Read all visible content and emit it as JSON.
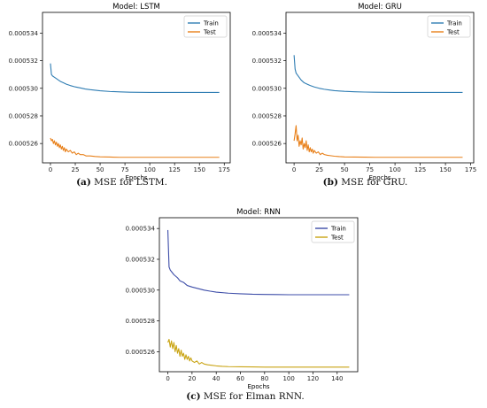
{
  "chart_data": [
    {
      "type": "line",
      "title": "Model: LSTM",
      "xlabel": "Epochs",
      "ylabel": "",
      "caption_letter": "(a)",
      "caption_text": " MSE for LSTM.",
      "xlim": [
        -8,
        181
      ],
      "ylim": [
        0.0005246,
        0.0005355
      ],
      "xticks": [
        0,
        25,
        50,
        75,
        100,
        125,
        150,
        175
      ],
      "yticks": [
        0.000526,
        0.000528,
        0.00053,
        0.000532,
        0.000534
      ],
      "ytick_labels": [
        "0.000526",
        "0.000528",
        "0.000530",
        "0.000532",
        "0.000534"
      ],
      "legend": {
        "position": "top-right",
        "entries": [
          "Train",
          "Test"
        ]
      },
      "series": [
        {
          "name": "Train",
          "color": "#2f7db3",
          "x": [
            0,
            1,
            2,
            4,
            6,
            8,
            10,
            13,
            16,
            20,
            25,
            30,
            35,
            40,
            50,
            60,
            70,
            80,
            90,
            100,
            110,
            120,
            130,
            140,
            150,
            160,
            170
          ],
          "y": [
            0.0005318,
            0.000531,
            0.0005309,
            0.0005308,
            0.0005307,
            0.0005306,
            0.0005305,
            0.0005304,
            0.0005303,
            0.0005302,
            0.0005301,
            0.00053003,
            0.00052995,
            0.0005299,
            0.00052982,
            0.00052977,
            0.00052974,
            0.00052972,
            0.00052971,
            0.0005297,
            0.0005297,
            0.0005297,
            0.0005297,
            0.0005297,
            0.0005297,
            0.0005297,
            0.0005297
          ]
        },
        {
          "name": "Test",
          "color": "#e8801a",
          "x": [
            0,
            1,
            2,
            3,
            4,
            5,
            6,
            7,
            8,
            9,
            10,
            11,
            12,
            13,
            14,
            15,
            16,
            18,
            20,
            22,
            24,
            26,
            28,
            30,
            33,
            36,
            40,
            45,
            50,
            60,
            70,
            80,
            100,
            120,
            140,
            160,
            170
          ],
          "y": [
            0.0005264,
            0.0005262,
            0.0005263,
            0.000526,
            0.0005262,
            0.0005259,
            0.0005261,
            0.0005258,
            0.000526,
            0.0005257,
            0.0005259,
            0.0005256,
            0.0005258,
            0.0005255,
            0.0005257,
            0.0005254,
            0.0005256,
            0.0005254,
            0.0005255,
            0.0005253,
            0.0005254,
            0.0005252,
            0.0005253,
            0.0005252,
            0.0005252,
            0.0005251,
            0.0005251,
            0.00052506,
            0.00052504,
            0.00052502,
            0.000525,
            0.000525,
            0.000525,
            0.000525,
            0.000525,
            0.000525,
            0.000525
          ]
        }
      ]
    },
    {
      "type": "line",
      "title": "Model: GRU",
      "xlabel": "Epochs",
      "ylabel": "",
      "caption_letter": "(b)",
      "caption_text": " MSE for GRU.",
      "xlim": [
        -8,
        178
      ],
      "ylim": [
        0.0005246,
        0.0005355
      ],
      "xticks": [
        0,
        25,
        50,
        75,
        100,
        125,
        150,
        175
      ],
      "yticks": [
        0.000526,
        0.000528,
        0.00053,
        0.000532,
        0.000534
      ],
      "ytick_labels": [
        "0.000526",
        "0.000528",
        "0.000530",
        "0.000532",
        "0.000534"
      ],
      "legend": {
        "position": "top-right",
        "entries": [
          "Train",
          "Test"
        ]
      },
      "series": [
        {
          "name": "Train",
          "color": "#2f7db3",
          "x": [
            0,
            1,
            2,
            3,
            5,
            7,
            10,
            13,
            16,
            20,
            25,
            30,
            35,
            40,
            50,
            60,
            70,
            80,
            90,
            100,
            120,
            140,
            160,
            167
          ],
          "y": [
            0.0005324,
            0.0005314,
            0.0005311,
            0.000531,
            0.0005308,
            0.0005306,
            0.0005304,
            0.0005303,
            0.0005302,
            0.0005301,
            0.00053,
            0.00052993,
            0.00052988,
            0.00052983,
            0.00052978,
            0.00052975,
            0.00052973,
            0.00052972,
            0.00052971,
            0.0005297,
            0.0005297,
            0.0005297,
            0.0005297,
            0.0005297
          ]
        },
        {
          "name": "Test",
          "color": "#e8801a",
          "x": [
            0,
            1,
            2,
            3,
            4,
            5,
            6,
            7,
            8,
            9,
            10,
            11,
            12,
            13,
            14,
            15,
            16,
            17,
            18,
            19,
            20,
            22,
            24,
            26,
            28,
            30,
            33,
            36,
            40,
            45,
            50,
            60,
            70,
            80,
            100,
            120,
            140,
            160,
            167
          ],
          "y": [
            0.0005262,
            0.0005267,
            0.0005273,
            0.0005262,
            0.0005266,
            0.0005258,
            0.0005262,
            0.0005259,
            0.0005264,
            0.0005256,
            0.000526,
            0.0005257,
            0.0005262,
            0.0005255,
            0.0005259,
            0.0005254,
            0.0005257,
            0.0005254,
            0.0005256,
            0.0005253,
            0.0005255,
            0.0005253,
            0.0005254,
            0.0005252,
            0.0005253,
            0.0005252,
            0.00052515,
            0.00052512,
            0.00052508,
            0.00052505,
            0.00052503,
            0.00052502,
            0.00052501,
            0.000525,
            0.000525,
            0.000525,
            0.000525,
            0.000525,
            0.000525
          ]
        }
      ]
    },
    {
      "type": "line",
      "title": "Model: RNN",
      "xlabel": "Epochs",
      "ylabel": "",
      "caption_letter": "(c)",
      "caption_text": " MSE for Elman RNN.",
      "xlim": [
        -7,
        157
      ],
      "ylim": [
        0.0005247,
        0.0005347
      ],
      "xticks": [
        0,
        20,
        40,
        60,
        80,
        100,
        120,
        140
      ],
      "yticks": [
        0.000526,
        0.000528,
        0.00053,
        0.000532,
        0.000534
      ],
      "ytick_labels": [
        "0.000526",
        "0.000528",
        "0.000530",
        "0.000532",
        "0.000534"
      ],
      "legend": {
        "position": "top-right",
        "entries": [
          "Train",
          "Test"
        ]
      },
      "series": [
        {
          "name": "Train",
          "color": "#3d4da8",
          "x": [
            0,
            1,
            2,
            3,
            5,
            8,
            10,
            13,
            16,
            20,
            25,
            30,
            35,
            40,
            50,
            60,
            70,
            80,
            90,
            100,
            110,
            120,
            130,
            140,
            150
          ],
          "y": [
            0.0005339,
            0.0005315,
            0.0005313,
            0.0005312,
            0.000531,
            0.0005308,
            0.0005306,
            0.0005305,
            0.0005303,
            0.0005302,
            0.0005301,
            0.00053,
            0.00052993,
            0.00052987,
            0.0005298,
            0.00052976,
            0.00052973,
            0.00052972,
            0.00052971,
            0.0005297,
            0.0005297,
            0.0005297,
            0.0005297,
            0.0005297,
            0.0005297
          ]
        },
        {
          "name": "Test",
          "color": "#c9a414",
          "x": [
            0,
            1,
            2,
            3,
            4,
            5,
            6,
            7,
            8,
            9,
            10,
            11,
            12,
            13,
            14,
            15,
            16,
            17,
            18,
            19,
            20,
            22,
            24,
            26,
            28,
            30,
            33,
            36,
            40,
            45,
            50,
            60,
            70,
            80,
            100,
            120,
            140,
            150
          ],
          "y": [
            0.0005266,
            0.0005268,
            0.0005263,
            0.0005267,
            0.0005262,
            0.0005266,
            0.000526,
            0.0005264,
            0.0005259,
            0.0005262,
            0.0005257,
            0.0005261,
            0.0005257,
            0.0005259,
            0.0005255,
            0.0005258,
            0.0005255,
            0.0005257,
            0.0005254,
            0.0005256,
            0.0005254,
            0.0005253,
            0.0005254,
            0.0005252,
            0.0005253,
            0.0005252,
            0.00052515,
            0.00052512,
            0.00052508,
            0.00052505,
            0.00052503,
            0.00052502,
            0.00052501,
            0.000525,
            0.000525,
            0.000525,
            0.000525,
            0.000525
          ]
        }
      ]
    }
  ]
}
